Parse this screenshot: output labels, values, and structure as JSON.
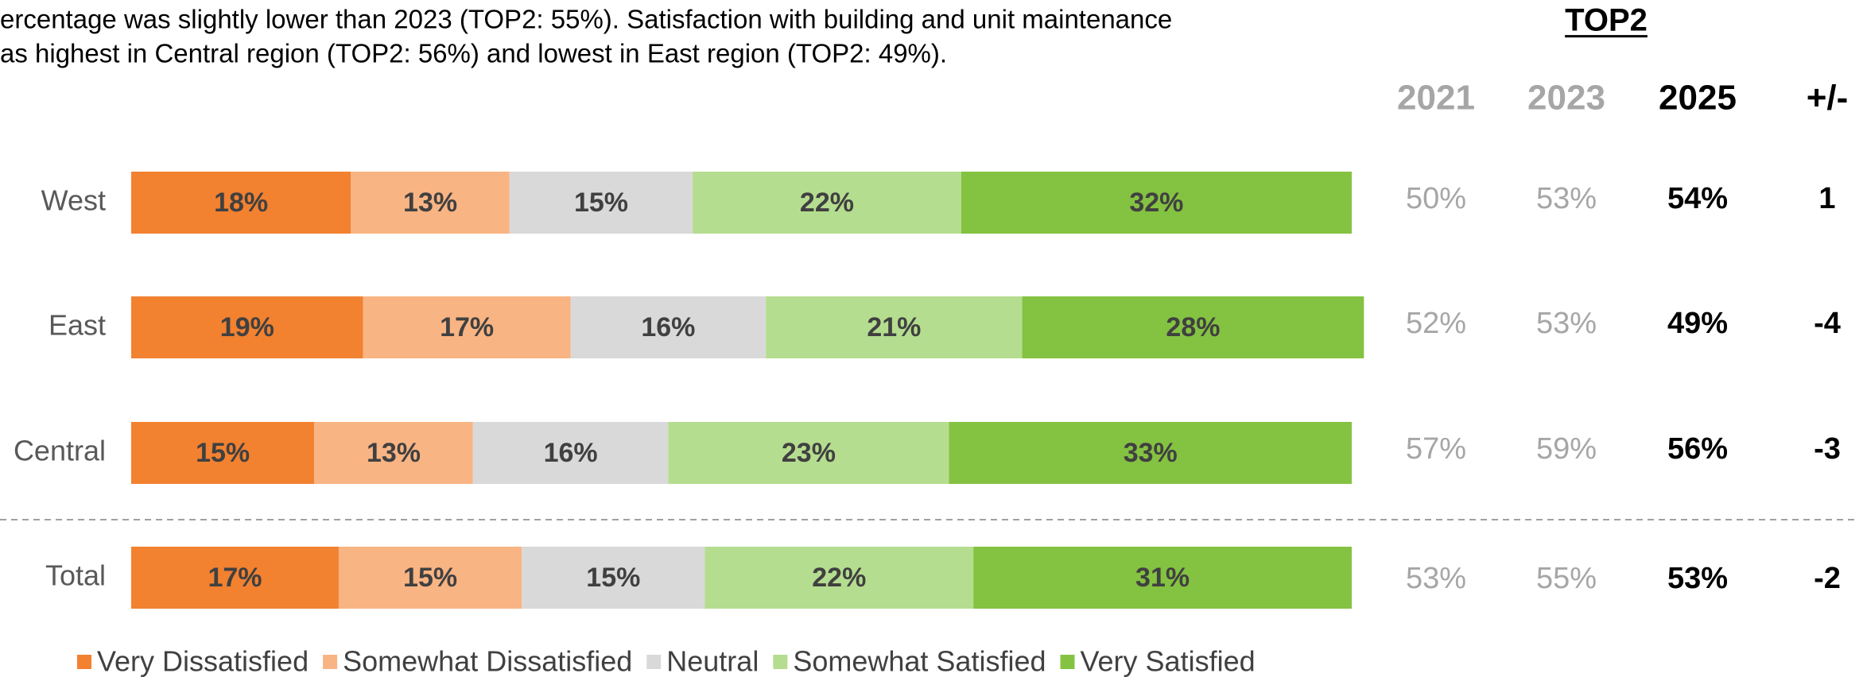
{
  "intro": [
    "ercentage was slightly lower than 2023 (TOP2: 55%). Satisfaction with building and unit maintenance",
    "as highest in Central region (TOP2: 56%) and lowest in East region (TOP2: 49%)."
  ],
  "chart_data": {
    "type": "stacked-bar-horizontal",
    "categories": [
      "West",
      "East",
      "Central",
      "Total"
    ],
    "xlim": [
      0,
      100
    ],
    "legend": "bottom",
    "series": [
      {
        "name": "Very Dissatisfied",
        "color": "#f28130",
        "values": [
          18,
          19,
          15,
          17
        ],
        "value_labels": [
          "18%",
          "19%",
          "15%",
          "17%"
        ]
      },
      {
        "name": "Somewhat Dissatisfied",
        "color": "#f9b483",
        "values": [
          13,
          17,
          13,
          15
        ],
        "value_labels": [
          "13%",
          "17%",
          "13%",
          "15%"
        ]
      },
      {
        "name": "Neutral",
        "color": "#d9d9d9",
        "values": [
          15,
          16,
          16,
          15
        ],
        "value_labels": [
          "15%",
          "16%",
          "16%",
          "15%"
        ]
      },
      {
        "name": "Somewhat Satisfied",
        "color": "#b5dd8f",
        "values": [
          22,
          21,
          23,
          22
        ],
        "value_labels": [
          "22%",
          "21%",
          "23%",
          "22%"
        ]
      },
      {
        "name": "Very Satisfied",
        "color": "#84c241",
        "values": [
          32,
          28,
          33,
          31
        ],
        "value_labels": [
          "32%",
          "28%",
          "33%",
          "31%"
        ]
      }
    ]
  },
  "table": {
    "title": "TOP2",
    "columns": [
      "2021",
      "2023",
      "2025",
      "+/-"
    ],
    "rows": [
      [
        "50%",
        "53%",
        "54%",
        "1"
      ],
      [
        "52%",
        "53%",
        "49%",
        "-4"
      ],
      [
        "57%",
        "59%",
        "56%",
        "-3"
      ],
      [
        "53%",
        "55%",
        "53%",
        "-2"
      ]
    ]
  }
}
